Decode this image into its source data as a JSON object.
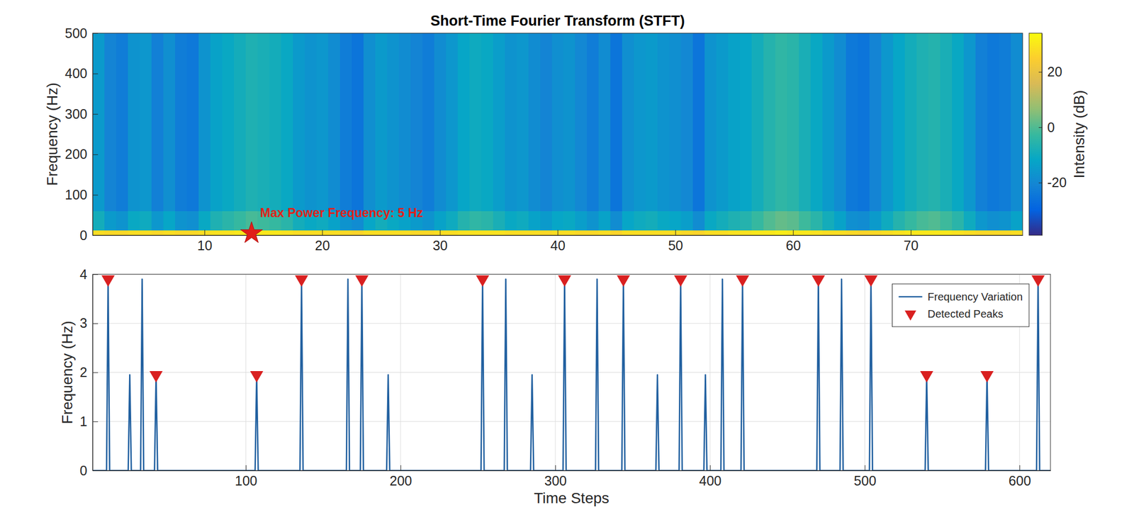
{
  "chart_data": [
    {
      "type": "heatmap",
      "title": "Short-Time Fourier Transform (STFT)",
      "y_label": "Frequency (Hz)",
      "x": [
        1,
        2,
        3,
        4,
        5,
        6,
        7,
        8,
        9,
        10,
        11,
        12,
        13,
        14,
        15,
        16,
        17,
        18,
        19,
        20,
        21,
        22,
        23,
        24,
        25,
        26,
        27,
        28,
        29,
        30,
        31,
        32,
        33,
        34,
        35,
        36,
        37,
        38,
        39,
        40,
        41,
        42,
        43,
        44,
        45,
        46,
        47,
        48,
        49,
        50,
        51,
        52,
        53,
        54,
        55,
        56,
        57,
        58,
        59,
        60,
        61,
        62,
        63,
        64,
        65,
        66,
        67,
        68,
        69,
        70,
        71,
        72,
        73,
        74,
        75,
        76,
        77,
        78,
        79
      ],
      "y_bins": [
        0,
        12,
        60,
        500
      ],
      "values": [
        [
          28,
          27,
          27,
          28,
          28,
          27,
          28,
          27,
          27,
          28,
          29,
          29,
          30,
          30,
          30,
          30,
          29,
          28,
          28,
          28,
          28,
          27,
          26,
          28,
          28,
          28,
          28,
          27,
          27,
          28,
          28,
          29,
          29,
          29,
          29,
          28,
          28,
          28,
          27,
          28,
          28,
          27,
          27,
          28,
          26,
          28,
          28,
          28,
          28,
          28,
          27,
          26,
          28,
          28,
          29,
          29,
          30,
          30,
          31,
          30,
          30,
          29,
          28,
          28,
          27,
          26,
          27,
          28,
          29,
          30,
          30,
          30,
          30,
          29,
          28,
          27,
          27,
          27,
          28
        ],
        [
          -9,
          -15,
          -17,
          -11,
          -10,
          -16,
          -12,
          -17,
          -18,
          -11,
          -7,
          -5,
          -3,
          -1,
          -2,
          -3,
          -5,
          -9,
          -11,
          -10,
          -13,
          -17,
          -19,
          -12,
          -9,
          -11,
          -13,
          -15,
          -17,
          -13,
          -10,
          -6,
          -4,
          -5,
          -8,
          -11,
          -10,
          -13,
          -15,
          -12,
          -11,
          -14,
          -17,
          -13,
          -19,
          -12,
          -10,
          -9,
          -11,
          -12,
          -14,
          -19,
          -11,
          -9,
          -7,
          -6,
          -3,
          0,
          2,
          1,
          -2,
          -5,
          -9,
          -13,
          -18,
          -19,
          -15,
          -10,
          -6,
          -3,
          -1,
          0,
          -2,
          -5,
          -10,
          -16,
          -18,
          -17,
          -13
        ],
        [
          -15,
          -21,
          -23,
          -17,
          -16,
          -22,
          -18,
          -23,
          -24,
          -17,
          -13,
          -11,
          -9,
          -7,
          -8,
          -9,
          -11,
          -15,
          -17,
          -16,
          -19,
          -23,
          -25,
          -18,
          -15,
          -17,
          -19,
          -21,
          -23,
          -19,
          -16,
          -12,
          -10,
          -11,
          -14,
          -17,
          -16,
          -19,
          -21,
          -18,
          -17,
          -20,
          -23,
          -19,
          -25,
          -18,
          -16,
          -15,
          -17,
          -18,
          -20,
          -25,
          -17,
          -15,
          -13,
          -12,
          -9,
          -6,
          -4,
          -5,
          -8,
          -11,
          -15,
          -19,
          -24,
          -25,
          -21,
          -16,
          -12,
          -9,
          -7,
          -6,
          -8,
          -11,
          -16,
          -22,
          -24,
          -23,
          -19
        ]
      ],
      "xlim": [
        0.5,
        79.5
      ],
      "xticks": [
        10,
        20,
        30,
        40,
        50,
        60,
        70
      ],
      "ylim": [
        0,
        500
      ],
      "yticks": [
        0,
        100,
        200,
        300,
        400,
        500
      ],
      "grid": false,
      "colorbar": {
        "label": "Intensity (dB)",
        "range": [
          -39,
          34
        ],
        "ticks": [
          -20,
          0,
          20
        ]
      },
      "annotation": {
        "text": "Max Power Frequency: 5 Hz",
        "x": 14,
        "y": 5,
        "marker": "star"
      }
    },
    {
      "type": "line",
      "x_label": "Time Steps",
      "y_label": "Frequency (Hz)",
      "xlim": [
        1,
        620
      ],
      "xticks": [
        100,
        200,
        300,
        400,
        500,
        600
      ],
      "ylim": [
        0,
        4
      ],
      "yticks": [
        0,
        1,
        2,
        3,
        4
      ],
      "grid": true,
      "legend": "northeast",
      "series": [
        {
          "name": "Frequency Variation",
          "type": "line",
          "color": "#2160a0",
          "x": [
            1,
            10,
            11,
            12,
            24,
            25,
            26,
            32,
            33,
            34,
            41,
            42,
            43,
            106,
            107,
            108,
            135,
            136,
            137,
            165,
            166,
            167,
            174,
            175,
            176,
            191,
            192,
            193,
            252,
            253,
            254,
            267,
            268,
            269,
            284,
            285,
            286,
            305,
            306,
            307,
            326,
            327,
            328,
            343,
            344,
            345,
            365,
            366,
            367,
            380,
            381,
            382,
            396,
            397,
            398,
            407,
            408,
            409,
            420,
            421,
            422,
            469,
            470,
            471,
            484,
            485,
            486,
            503,
            504,
            505,
            539,
            540,
            541,
            578,
            579,
            580,
            611,
            612,
            613,
            620
          ],
          "values": [
            0,
            0,
            3.9,
            0,
            0,
            1.95,
            0,
            0,
            3.9,
            0,
            0,
            1.95,
            0,
            0,
            1.95,
            0,
            0,
            3.9,
            0,
            0,
            3.9,
            0,
            0,
            3.9,
            0,
            0,
            1.95,
            0,
            0,
            3.9,
            0,
            0,
            3.9,
            0,
            0,
            1.95,
            0,
            0,
            3.9,
            0,
            0,
            3.9,
            0,
            0,
            3.9,
            0,
            0,
            1.95,
            0,
            0,
            3.9,
            0,
            0,
            1.95,
            0,
            0,
            3.9,
            0,
            0,
            3.9,
            0,
            0,
            3.9,
            0,
            0,
            3.9,
            0,
            0,
            3.9,
            0,
            0,
            1.95,
            0,
            0,
            1.95,
            0,
            0,
            3.9,
            0,
            0
          ]
        },
        {
          "name": "Detected Peaks",
          "type": "scatter",
          "color": "#d92020",
          "marker": "triangle-down",
          "x": [
            11,
            42,
            107,
            136,
            175,
            253,
            306,
            344,
            381,
            421,
            470,
            504,
            540,
            579,
            612
          ],
          "values": [
            3.9,
            1.95,
            1.95,
            3.9,
            3.9,
            3.9,
            3.9,
            3.9,
            3.9,
            3.9,
            3.9,
            3.9,
            1.95,
            1.95,
            3.9
          ]
        }
      ]
    }
  ]
}
